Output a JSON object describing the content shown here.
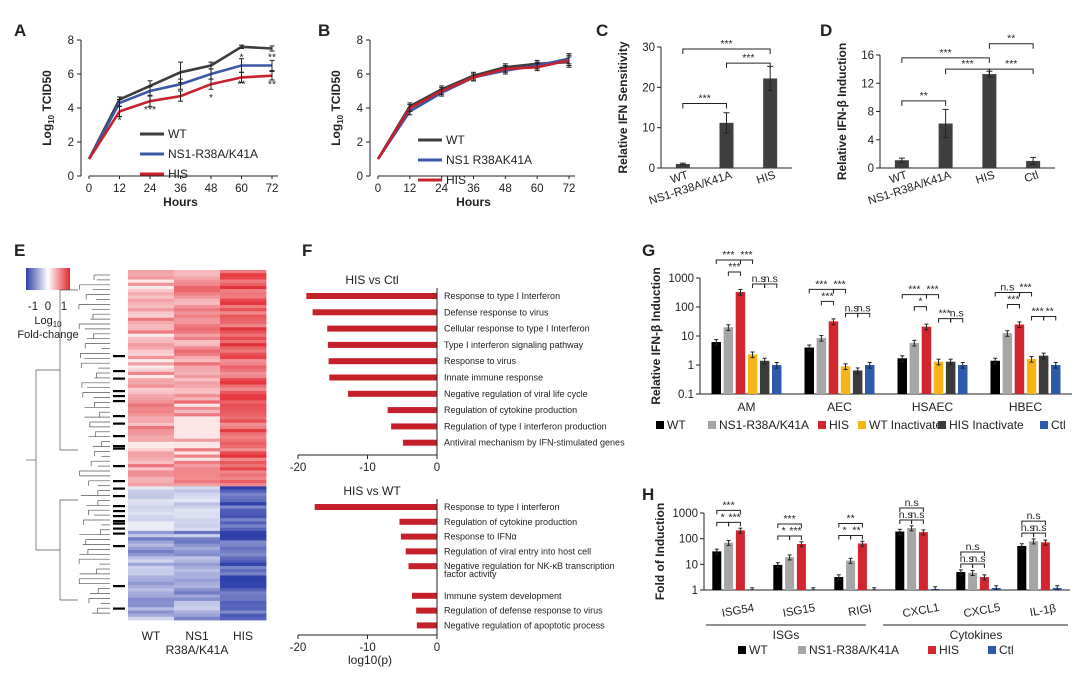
{
  "chart_data": [
    {
      "panel": "A",
      "type": "line",
      "x": [
        0,
        12,
        24,
        36,
        48,
        60,
        72
      ],
      "xlabel": "Hours",
      "ylabel_sub": "10",
      "ylabel_main": "TCID50",
      "ylabel_prefix": "Log",
      "ylim": [
        0,
        8
      ],
      "yticks": [
        0,
        2,
        4,
        6,
        8
      ],
      "series": [
        {
          "name": "WT",
          "color": "#3d3d3d",
          "values": [
            1,
            4.5,
            5.3,
            6.1,
            6.5,
            7.6,
            7.5
          ],
          "err": [
            0,
            0.15,
            0.3,
            0.6,
            0.2,
            0.1,
            0.15
          ]
        },
        {
          "name": "NS1-R38A/K41A",
          "color": "#3b58a6",
          "values": [
            1,
            4.3,
            5.0,
            5.4,
            6.0,
            6.5,
            6.5
          ],
          "err": [
            0,
            0.2,
            0.25,
            0.3,
            0.3,
            0.4,
            0.3
          ]
        },
        {
          "name": "HIS",
          "color": "#c8202c",
          "values": [
            1,
            3.8,
            4.4,
            4.7,
            5.4,
            5.8,
            5.9
          ],
          "err": [
            0,
            0.3,
            0.3,
            0.3,
            0.3,
            0.3,
            0.25
          ]
        }
      ],
      "annotations": [
        {
          "x": 12,
          "y": 3.1,
          "text": "*"
        },
        {
          "x": 24,
          "y": 3.7,
          "text": "***"
        },
        {
          "x": 48,
          "y": 4.4,
          "text": "*"
        },
        {
          "x": 60,
          "y": 6.8,
          "text": "*"
        },
        {
          "x": 60,
          "y": 5.2,
          "text": "**"
        },
        {
          "x": 72,
          "y": 6.8,
          "text": "**"
        },
        {
          "x": 72,
          "y": 5.2,
          "text": "**"
        }
      ]
    },
    {
      "panel": "B",
      "type": "line",
      "x": [
        0,
        12,
        24,
        36,
        48,
        60,
        72
      ],
      "xlabel": "Hours",
      "ylabel_sub": "10",
      "ylabel_main": "TCID50",
      "ylabel_prefix": "Log",
      "ylim": [
        0,
        8
      ],
      "yticks": [
        0,
        2,
        4,
        6,
        8
      ],
      "series": [
        {
          "name": "WT",
          "color": "#3d3d3d",
          "values": [
            1,
            4.1,
            5.1,
            5.9,
            6.4,
            6.6,
            6.7
          ],
          "err": [
            0,
            0.2,
            0.2,
            0.2,
            0.2,
            0.2,
            0.3
          ]
        },
        {
          "name": "NS1 R38AK41A",
          "color": "#3b58a6",
          "values": [
            1,
            3.8,
            4.9,
            5.8,
            6.2,
            6.5,
            6.9
          ],
          "err": [
            0,
            0.2,
            0.2,
            0.2,
            0.2,
            0.2,
            0.3
          ]
        },
        {
          "name": "HIS",
          "color": "#c8202c",
          "values": [
            1,
            4.0,
            5.0,
            5.8,
            6.3,
            6.4,
            6.8
          ],
          "err": [
            0,
            0.2,
            0.2,
            0.2,
            0.2,
            0.2,
            0.3
          ]
        }
      ]
    },
    {
      "panel": "C",
      "type": "bar",
      "categories": [
        "WT",
        "NS1-R38A/K41A",
        "HIS"
      ],
      "values": [
        1,
        11.2,
        22.2
      ],
      "err": [
        0.2,
        2.5,
        3.0
      ],
      "ylabel": "Relative IFN Sensitivity",
      "ylim": [
        0,
        30
      ],
      "yticks": [
        0,
        10,
        20,
        30
      ],
      "brackets": [
        {
          "from": 0,
          "to": 1,
          "y": 16,
          "text": "***"
        },
        {
          "from": 1,
          "to": 2,
          "y": 26,
          "text": "***"
        },
        {
          "from": 0,
          "to": 2,
          "y": 29.5,
          "text": "***"
        }
      ]
    },
    {
      "panel": "D",
      "type": "bar",
      "categories": [
        "WT",
        "NS1-R38A/K41A",
        "HIS",
        "Ctl"
      ],
      "values": [
        1.1,
        6.3,
        13.3,
        1.0
      ],
      "err": [
        0.3,
        2.0,
        0.4,
        0.5
      ],
      "ylabel": "Relative IFN-β Induction",
      "ylim": [
        0,
        16
      ],
      "yticks": [
        0,
        4,
        8,
        12,
        16
      ],
      "brackets": [
        {
          "from": 0,
          "to": 1,
          "y": 9.5,
          "text": "**"
        },
        {
          "from": 1,
          "to": 2,
          "y": 14.0,
          "text": "***"
        },
        {
          "from": 2,
          "to": 3,
          "y": 14.0,
          "text": "***"
        },
        {
          "from": 0,
          "to": 2,
          "y": 15.6,
          "text": "***"
        },
        {
          "from": 2,
          "to": 3,
          "y": 17.6,
          "text": "**"
        }
      ]
    },
    {
      "panel": "E",
      "type": "heatmap",
      "legend_min": "-1",
      "legend_mid": "0",
      "legend_max": "1",
      "legend_title_prefix": "Log",
      "legend_title_sub": "10",
      "legend_title2": "Fold-change",
      "columns": [
        "WT",
        "NS1",
        "R38A/K41A",
        "HIS"
      ],
      "note": "Top ~62% of rows up-regulated (red), remaining rows down-regulated (blue), strongest in HIS"
    },
    {
      "panel": "F",
      "type": "bar",
      "subcharts": [
        {
          "title": "HIS vs Ctl",
          "categories": [
            "Response to type I Interferon",
            "Defense response to virus",
            "Cellular response to type I Interferon",
            "Type I interferon signaling pathway",
            "Response to virus",
            "Innate immune response",
            "Negative regulation of viral life cycle",
            "Regulation of cytokine production",
            "Regulation of type I interferon production",
            "Antiviral mechanism by IFN-stimulated genes"
          ],
          "values": [
            -18.8,
            -17.9,
            -15.8,
            -15.7,
            -15.6,
            -15.5,
            -12.8,
            -7.1,
            -6.6,
            -4.9
          ],
          "xlim": [
            -20,
            0
          ],
          "xticks": [
            -20,
            -10,
            0
          ]
        },
        {
          "title": "HIS vs WT",
          "categories": [
            "Response to type I interferon",
            "Regulation of cytokine production",
            "Response to IFNα",
            "Regulation of viral entry into host cell",
            "Negative regulation for NK-κB transcription",
            "factor activity",
            "Immune system development",
            "Regulation of defense response to virus",
            "Negative regulation of apoptotic process"
          ],
          "values": [
            -17.6,
            -5.4,
            -5.2,
            -4.5,
            -4.1,
            null,
            -3.6,
            -3.0,
            -2.9
          ],
          "xlim": [
            -20,
            0
          ],
          "xticks": [
            -20,
            -10,
            0
          ],
          "xlabel": "log10(p)"
        }
      ]
    },
    {
      "panel": "G",
      "type": "bar",
      "scale": "log",
      "ylabel": "Relative IFN-β Induction",
      "ylim": [
        0.1,
        1000
      ],
      "yticks": [
        "0.1",
        "1",
        "10",
        "100",
        "1000"
      ],
      "categories": [
        "AM",
        "AEC",
        "HSAEC",
        "HBEC"
      ],
      "series": [
        {
          "name": "WT",
          "color": "#000000",
          "values": [
            6.2,
            4.0,
            1.7,
            1.4
          ]
        },
        {
          "name": "NS1-R38A/K41A",
          "color": "#a6a6a6",
          "values": [
            20,
            8.5,
            5.8,
            12.5
          ]
        },
        {
          "name": "HIS",
          "color": "#d12630",
          "values": [
            330,
            32,
            21,
            25
          ]
        },
        {
          "name": "WT Inactivate",
          "color": "#f6b516",
          "values": [
            2.3,
            0.9,
            1.3,
            1.6
          ]
        },
        {
          "name": "HIS Inactivate",
          "color": "#3a3a3a",
          "values": [
            1.4,
            0.65,
            1.3,
            2.1
          ]
        },
        {
          "name": "Ctl",
          "color": "#2c5bab",
          "values": [
            1.0,
            1.0,
            1.0,
            1.0
          ]
        }
      ],
      "significance": [
        "***",
        "***",
        "***",
        "n.s",
        "n.s",
        "***",
        "***",
        "***",
        "n.s",
        "n.s",
        "***",
        "*",
        "***",
        "***",
        "n.s",
        "n.s",
        "***",
        "***",
        "***",
        "**",
        "n.s",
        "n.s"
      ]
    },
    {
      "panel": "H",
      "type": "bar",
      "scale": "log",
      "ylabel": "Fold of Induction",
      "ylim": [
        1,
        1000
      ],
      "yticks": [
        "1",
        "10",
        "100",
        "1000"
      ],
      "categories": [
        "ISG54",
        "ISG15",
        "RIGI",
        "CXCL1",
        "CXCL5",
        "IL-1β"
      ],
      "groups": [
        "ISGs",
        "Cytokines"
      ],
      "series": [
        {
          "name": "WT",
          "color": "#000000",
          "values": [
            32,
            9.5,
            3.2,
            190,
            5.0,
            52
          ]
        },
        {
          "name": "NS1-R38A/K41A",
          "color": "#a6a6a6",
          "values": [
            70,
            19,
            14,
            260,
            4.7,
            80
          ]
        },
        {
          "name": "HIS",
          "color": "#d12630",
          "values": [
            210,
            62,
            65,
            180,
            3.2,
            72
          ]
        },
        {
          "name": "Ctl",
          "color": "#2c5bab",
          "values": [
            1.0,
            1.0,
            1.0,
            1.1,
            1.2,
            1.2
          ]
        }
      ],
      "significance": [
        "*",
        "***",
        "***",
        "*",
        "***",
        "***",
        "*",
        "**",
        "**",
        "n.s",
        "n.s",
        "n.s",
        "n.s",
        "n.s",
        "n.s",
        "n.s",
        "n.s",
        "n.s"
      ]
    }
  ]
}
